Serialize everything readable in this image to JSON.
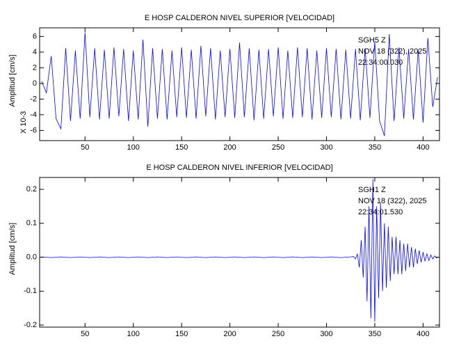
{
  "chart_data": [
    {
      "type": "line",
      "title": "E HOSP CALDERON NIVEL SUPERIOR [VELOCIDAD]",
      "ylabel": "Amplitud [cm/s]",
      "y_multiplier": "X 10-3",
      "annotations": [
        "SGH5   Z",
        "NOV 18 (322), 2025",
        "22:34:00.030"
      ],
      "xlim": [
        3,
        417
      ],
      "xticks": [
        50,
        100,
        150,
        200,
        250,
        300,
        350,
        400
      ],
      "ylim": [
        -7.3,
        7.1
      ],
      "yticks": [
        -6,
        -4,
        -2,
        0,
        2,
        4,
        6
      ],
      "x": [
        5,
        10,
        15,
        20,
        25,
        30,
        35,
        40,
        45,
        50,
        55,
        60,
        65,
        70,
        75,
        80,
        85,
        90,
        95,
        100,
        105,
        110,
        115,
        120,
        125,
        130,
        135,
        140,
        145,
        150,
        155,
        160,
        165,
        170,
        175,
        180,
        185,
        190,
        195,
        200,
        205,
        210,
        215,
        220,
        225,
        230,
        235,
        240,
        245,
        250,
        255,
        260,
        265,
        270,
        275,
        280,
        285,
        290,
        295,
        300,
        305,
        310,
        315,
        320,
        325,
        330,
        335,
        340,
        345,
        350,
        355,
        360,
        365,
        370,
        375,
        380,
        385,
        390,
        395,
        400,
        405,
        410,
        415
      ],
      "series": [
        {
          "color": "#0000ff",
          "values": [
            0.3,
            -1.2,
            3.5,
            -4.5,
            -5.8,
            4.5,
            -4.8,
            4.2,
            -4.5,
            6.5,
            -4.3,
            4.5,
            -4.6,
            4.3,
            -4.5,
            4.6,
            -4.2,
            4.4,
            -4.8,
            4.2,
            -4.6,
            5.6,
            -5.5,
            4.5,
            -4.5,
            4.4,
            -4.6,
            4.2,
            -4.3,
            4.6,
            -4.4,
            4.3,
            -4.5,
            4.8,
            -4.2,
            4.5,
            -4.6,
            4.2,
            -4.3,
            4.4,
            -4.4,
            5.2,
            -4.3,
            4.5,
            -4.7,
            4.3,
            -4.5,
            4.4,
            -4.2,
            4.6,
            -4.5,
            4.2,
            -4.4,
            4.6,
            -4.3,
            4.5,
            -4.6,
            4.2,
            -4.4,
            4.5,
            -4.3,
            4.4,
            -4.6,
            4.3,
            -4.5,
            4.4,
            -4.7,
            4.5,
            -4.4,
            5.3,
            -4.8,
            -6.7,
            6.3,
            -4.8,
            4.6,
            -4.5,
            4.4,
            -4.6,
            4.3,
            -5.0,
            5.8,
            -3.0,
            0.8
          ]
        }
      ]
    },
    {
      "type": "line",
      "title": "E HOSP CALDERON NIVEL INFERIOR [VELOCIDAD]",
      "ylabel": "Amplitud [cm/s]",
      "annotations": [
        "SGH1   Z",
        "NOV 18 (322), 2025",
        "22:34:01.530"
      ],
      "xlim": [
        3,
        417
      ],
      "xticks": [
        50,
        100,
        150,
        200,
        250,
        300,
        350,
        400
      ],
      "ylim": [
        -0.206,
        0.235
      ],
      "yticks": [
        -0.2,
        -0.1,
        {
          "value": 0,
          "label": "0.0"
        },
        0.1,
        0.2
      ],
      "x": [
        5,
        15,
        25,
        35,
        45,
        55,
        65,
        75,
        85,
        95,
        105,
        115,
        125,
        135,
        145,
        155,
        165,
        175,
        185,
        195,
        205,
        215,
        225,
        235,
        245,
        255,
        265,
        275,
        285,
        295,
        305,
        315,
        325,
        328,
        330,
        332,
        334,
        336,
        338,
        340,
        342,
        344,
        346,
        348,
        350,
        352,
        354,
        356,
        358,
        360,
        362,
        364,
        366,
        368,
        370,
        372,
        374,
        376,
        378,
        380,
        382,
        384,
        386,
        388,
        390,
        392,
        394,
        396,
        398,
        400,
        402,
        404,
        406,
        408,
        410,
        412,
        414,
        416
      ],
      "series": [
        {
          "color": "#0000ff",
          "values": [
            0.001,
            -0.001,
            0.001,
            -0.001,
            0.001,
            -0.001,
            0.001,
            -0.001,
            0.001,
            -0.001,
            0.001,
            -0.001,
            0.001,
            -0.001,
            0.001,
            -0.001,
            0.001,
            -0.001,
            0.001,
            -0.001,
            0.001,
            -0.001,
            0.001,
            -0.001,
            0.001,
            -0.001,
            0.001,
            -0.001,
            0.001,
            -0.001,
            0.001,
            -0.001,
            0.001,
            0.002,
            -0.005,
            0.01,
            -0.03,
            0.05,
            -0.06,
            0.09,
            -0.13,
            0.15,
            -0.18,
            0.23,
            -0.19,
            0.15,
            -0.12,
            0.16,
            -0.1,
            0.1,
            -0.09,
            0.09,
            -0.07,
            0.06,
            -0.05,
            0.06,
            -0.05,
            0.05,
            -0.05,
            0.04,
            -0.04,
            0.04,
            -0.03,
            0.03,
            -0.03,
            0.025,
            -0.02,
            0.02,
            -0.015,
            0.015,
            -0.012,
            0.01,
            -0.01,
            0.007,
            -0.005,
            0.004,
            -0.002,
            0.001
          ]
        }
      ]
    }
  ]
}
